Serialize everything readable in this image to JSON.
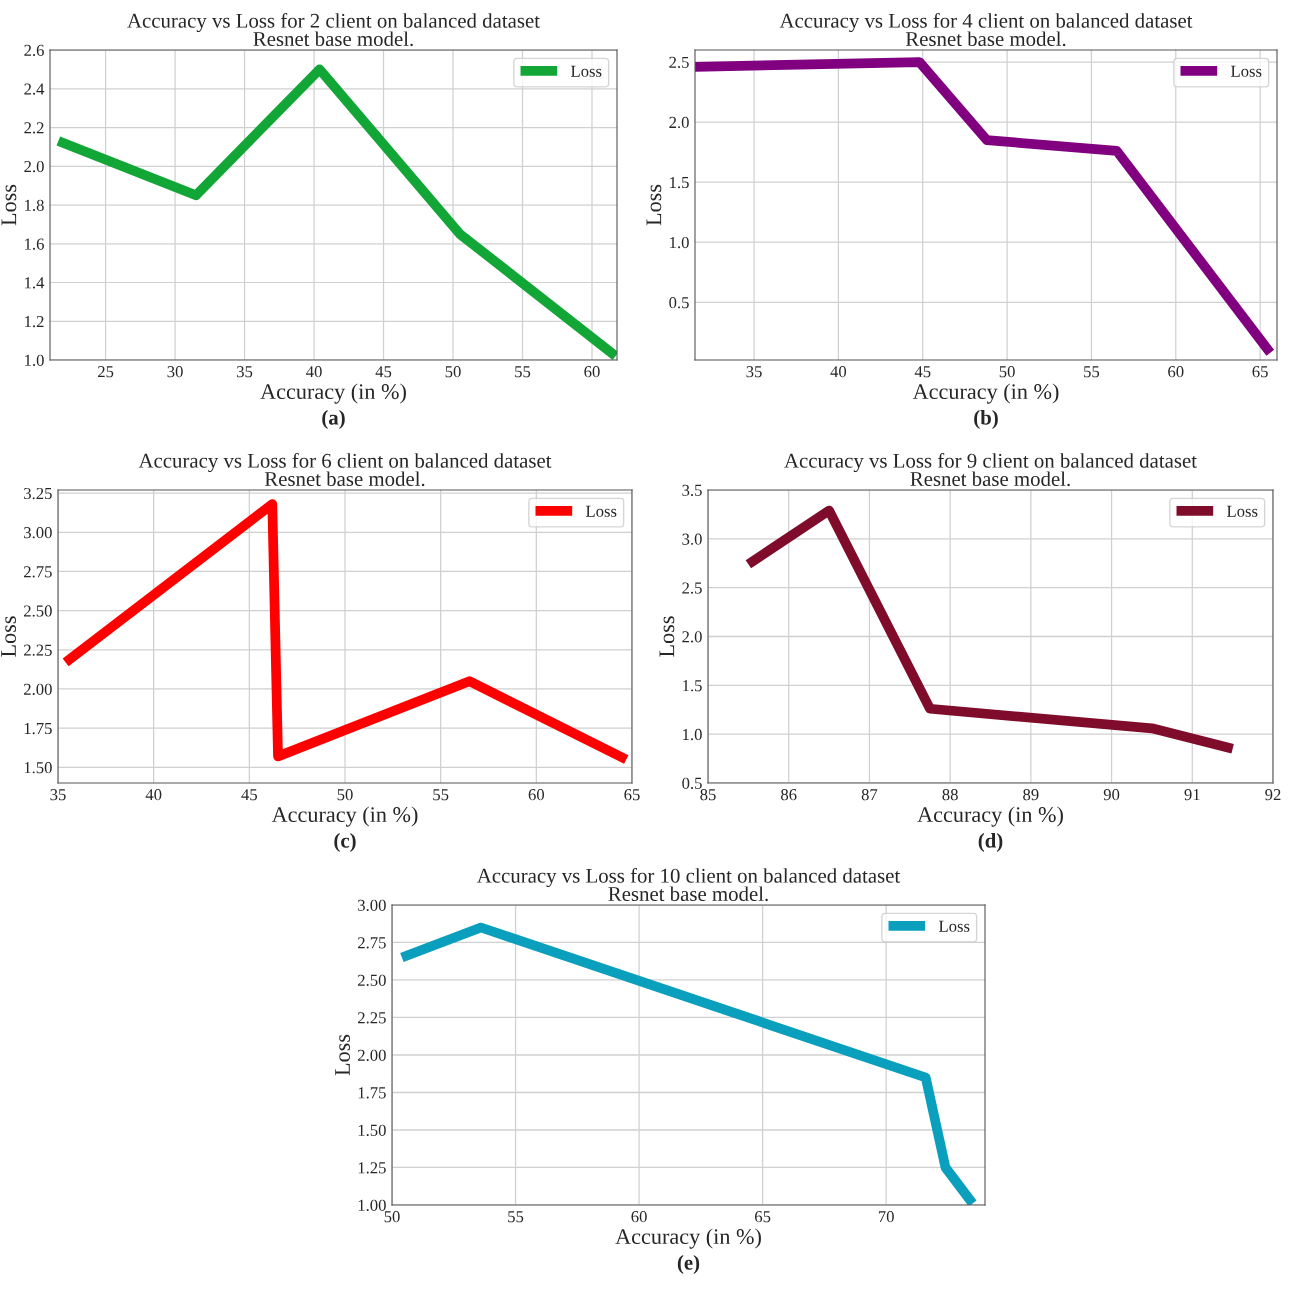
{
  "chart_data": [
    {
      "type": "line",
      "title": "Accuracy vs Loss for 2 client on balanced dataset",
      "subtitle": "Resnet base model.",
      "xlabel": "Accuracy (in %)",
      "ylabel": "Loss",
      "annotations": [
        "(a)"
      ],
      "x": [
        21.6,
        31.5,
        40.4,
        50.5,
        61.7
      ],
      "series": [
        {
          "name": "Loss",
          "color": "#12a637",
          "values": [
            2.13,
            1.85,
            2.5,
            1.65,
            1.02
          ]
        }
      ],
      "xlim": [
        21,
        61.8
      ],
      "xticks": [
        25,
        30,
        35,
        40,
        45,
        50,
        55,
        60
      ],
      "ylim": [
        1.0,
        2.6
      ],
      "yticks": [
        {
          "value": 1.0,
          "label": "1.0"
        },
        1.2,
        1.4,
        1.6,
        1.8,
        {
          "value": 2.0,
          "label": "2.0"
        },
        2.2,
        2.4,
        2.6
      ],
      "grid": true,
      "legend": "top right",
      "line_style": "solid"
    },
    {
      "type": "line",
      "title": "Accuracy vs Loss for 4 client on balanced dataset",
      "subtitle": "Resnet base model.",
      "xlabel": "Accuracy (in %)",
      "ylabel": "Loss",
      "annotations": [
        "(b)"
      ],
      "x": [
        31.5,
        44.8,
        48.8,
        56.5,
        65.6
      ],
      "series": [
        {
          "name": "Loss",
          "color": "#800080",
          "values": [
            2.46,
            2.5,
            1.85,
            1.76,
            0.08
          ]
        }
      ],
      "xlim": [
        31.5,
        66.0
      ],
      "xticks": [
        35,
        40,
        45,
        50,
        55,
        60,
        65
      ],
      "ylim": [
        0.02,
        2.6
      ],
      "yticks": [
        0.5,
        {
          "value": 1.0,
          "label": "1.0"
        },
        1.5,
        {
          "value": 2.0,
          "label": "2.0"
        },
        2.5
      ],
      "grid": true,
      "legend": "top right",
      "line_style": "solid"
    },
    {
      "type": "line",
      "title": "Accuracy vs Loss for 6 client on balanced dataset",
      "subtitle": "Resnet base model.",
      "xlabel": "Accuracy (in %)",
      "ylabel": "Loss",
      "annotations": [
        "(c)"
      ],
      "x": [
        35.4,
        46.2,
        46.5,
        56.5,
        64.7
      ],
      "series": [
        {
          "name": "Loss",
          "color": "#ff0000",
          "values": [
            2.17,
            3.18,
            1.57,
            2.05,
            1.55
          ]
        }
      ],
      "xlim": [
        35,
        65
      ],
      "xticks": [
        35,
        40,
        45,
        50,
        55,
        60,
        65
      ],
      "ylim": [
        1.4,
        3.27
      ],
      "yticks": [
        {
          "value": 1.5,
          "label": "1.50"
        },
        1.75,
        {
          "value": 2.0,
          "label": "2.00"
        },
        2.25,
        {
          "value": 2.5,
          "label": "2.50"
        },
        2.75,
        {
          "value": 3.0,
          "label": "3.00"
        },
        3.25
      ],
      "grid": true,
      "legend": "top right",
      "line_style": "solid"
    },
    {
      "type": "line",
      "title": "Accuracy vs Loss for 9 client on balanced dataset",
      "subtitle": "Resnet base model.",
      "xlabel": "Accuracy (in %)",
      "ylabel": "Loss",
      "annotations": [
        "(d)"
      ],
      "x": [
        85.5,
        86.5,
        87.75,
        90.5,
        91.5
      ],
      "series": [
        {
          "name": "Loss",
          "color": "#800c2c",
          "values": [
            2.74,
            3.29,
            1.26,
            1.06,
            0.85
          ]
        }
      ],
      "xlim": [
        85,
        92
      ],
      "xticks": [
        85,
        86,
        87,
        88,
        89,
        90,
        91,
        92
      ],
      "ylim": [
        0.5,
        3.5
      ],
      "yticks": [
        0.5,
        {
          "value": 1.0,
          "label": "1.0"
        },
        1.5,
        {
          "value": 2.0,
          "label": "2.0"
        },
        2.5,
        {
          "value": 3.0,
          "label": "3.0"
        },
        3.5
      ],
      "grid": true,
      "legend": "top right",
      "line_style": "solid"
    },
    {
      "type": "line",
      "title": "Accuracy vs Loss for 10 client on balanced dataset",
      "subtitle": "Resnet base model.",
      "xlabel": "Accuracy (in %)",
      "ylabel": "Loss",
      "annotations": [
        "(e)"
      ],
      "x": [
        50.4,
        53.6,
        71.6,
        72.4,
        73.5
      ],
      "series": [
        {
          "name": "Loss",
          "color": "#0a9fbd",
          "values": [
            2.65,
            2.85,
            1.85,
            1.25,
            1.01
          ]
        }
      ],
      "xlim": [
        50,
        74
      ],
      "xticks": [
        50,
        55,
        60,
        65,
        70
      ],
      "ylim": [
        1.0,
        3.0
      ],
      "yticks": [
        {
          "value": 1.0,
          "label": "1.00"
        },
        1.25,
        {
          "value": 1.5,
          "label": "1.50"
        },
        1.75,
        {
          "value": 2.0,
          "label": "2.00"
        },
        2.25,
        {
          "value": 2.5,
          "label": "2.50"
        },
        2.75,
        {
          "value": 3.0,
          "label": "3.00"
        }
      ],
      "grid": true,
      "legend": "top right",
      "line_style": "solid"
    }
  ]
}
